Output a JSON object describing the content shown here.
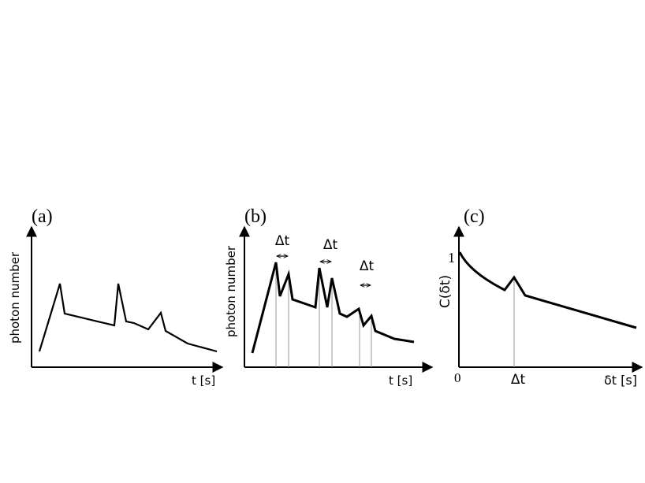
{
  "panels": [
    {
      "label": "(a)",
      "y_label": "photon number",
      "x_label": "t [s]"
    },
    {
      "label": "(b)",
      "y_label": "photon number",
      "x_label": "t [s]",
      "intervals": [
        "Δt",
        "Δt",
        "Δt"
      ]
    },
    {
      "label": "(c)",
      "y_label": "C(δt)",
      "x_label": "δt [s]",
      "y_tick": "1",
      "x_origin": "0",
      "x_marker": "Δt"
    }
  ]
}
